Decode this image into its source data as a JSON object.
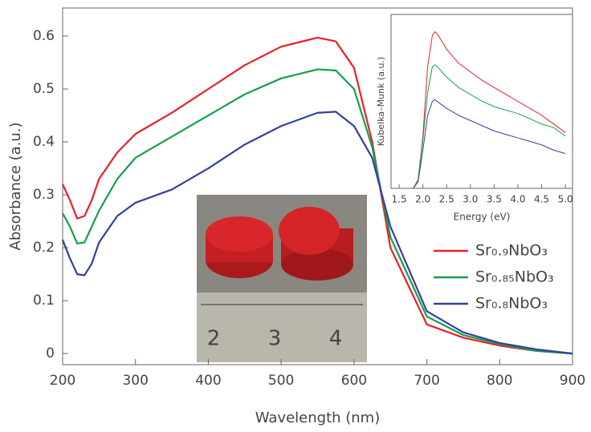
{
  "chart_data": [
    {
      "type": "line",
      "x_label": "Wavelength (nm)",
      "y_label": "Absorbance (a.u.)",
      "x": [
        200,
        210,
        220,
        230,
        240,
        250,
        275,
        300,
        350,
        400,
        450,
        500,
        550,
        575,
        600,
        625,
        650,
        700,
        750,
        800,
        850,
        900
      ],
      "series": [
        {
          "name": "Sr₀.₉NbO₃",
          "color": "#e8202a",
          "values": [
            0.32,
            0.29,
            0.255,
            0.26,
            0.29,
            0.33,
            0.38,
            0.415,
            0.455,
            0.5,
            0.545,
            0.58,
            0.597,
            0.59,
            0.54,
            0.4,
            0.2,
            0.055,
            0.03,
            0.015,
            0.005,
            0.0
          ]
        },
        {
          "name": "Sr₀.₈₅NbO₃",
          "color": "#12a04a",
          "values": [
            0.265,
            0.24,
            0.208,
            0.21,
            0.24,
            0.27,
            0.33,
            0.37,
            0.41,
            0.45,
            0.49,
            0.52,
            0.537,
            0.535,
            0.5,
            0.39,
            0.22,
            0.07,
            0.035,
            0.018,
            0.005,
            0.0
          ]
        },
        {
          "name": "Sr₀.₈NbO₃",
          "color": "#3440a0",
          "values": [
            0.215,
            0.18,
            0.15,
            0.148,
            0.17,
            0.21,
            0.26,
            0.285,
            0.31,
            0.35,
            0.395,
            0.43,
            0.455,
            0.457,
            0.43,
            0.37,
            0.24,
            0.08,
            0.04,
            0.02,
            0.008,
            0.0
          ]
        }
      ],
      "xlim": [
        200,
        900
      ],
      "xticks": [
        200,
        300,
        400,
        500,
        600,
        700,
        800,
        900
      ],
      "ylim": [
        -0.021,
        0.653
      ],
      "yticks": [
        0,
        0.1,
        0.2,
        0.3,
        0.4,
        0.5,
        0.6
      ],
      "legend": "right",
      "annotations": [
        "2",
        "3",
        "4"
      ]
    },
    {
      "type": "line",
      "x_label": "Energy (eV)",
      "y_label": "Kubelka–Munk (a.u.)",
      "x": [
        1.8,
        1.9,
        2.0,
        2.1,
        2.2,
        2.25,
        2.3,
        2.5,
        2.75,
        3.0,
        3.25,
        3.5,
        3.75,
        4.0,
        4.25,
        4.5,
        4.75,
        5.0
      ],
      "series": [
        {
          "color": "#e8202a",
          "values": [
            0,
            0.05,
            0.3,
            0.7,
            0.88,
            0.9,
            0.89,
            0.8,
            0.72,
            0.67,
            0.62,
            0.58,
            0.54,
            0.5,
            0.46,
            0.42,
            0.37,
            0.32
          ]
        },
        {
          "color": "#12a04a",
          "values": [
            0,
            0.05,
            0.28,
            0.55,
            0.7,
            0.71,
            0.7,
            0.64,
            0.58,
            0.54,
            0.5,
            0.47,
            0.45,
            0.43,
            0.4,
            0.37,
            0.35,
            0.3
          ]
        },
        {
          "color": "#3440a0",
          "values": [
            0,
            0.04,
            0.22,
            0.42,
            0.5,
            0.51,
            0.5,
            0.46,
            0.42,
            0.39,
            0.36,
            0.33,
            0.31,
            0.29,
            0.27,
            0.25,
            0.22,
            0.2
          ]
        }
      ],
      "xlim": [
        1.33,
        5.15
      ],
      "xticks": [
        1.5,
        {
          "value": 2,
          "label": "2.0"
        },
        2.5,
        {
          "value": 3,
          "label": "3.0"
        },
        3.5,
        {
          "value": 4,
          "label": "4.0"
        },
        4.5,
        {
          "value": 5,
          "label": "5.0"
        }
      ],
      "ylim": [
        0,
        1
      ]
    }
  ]
}
